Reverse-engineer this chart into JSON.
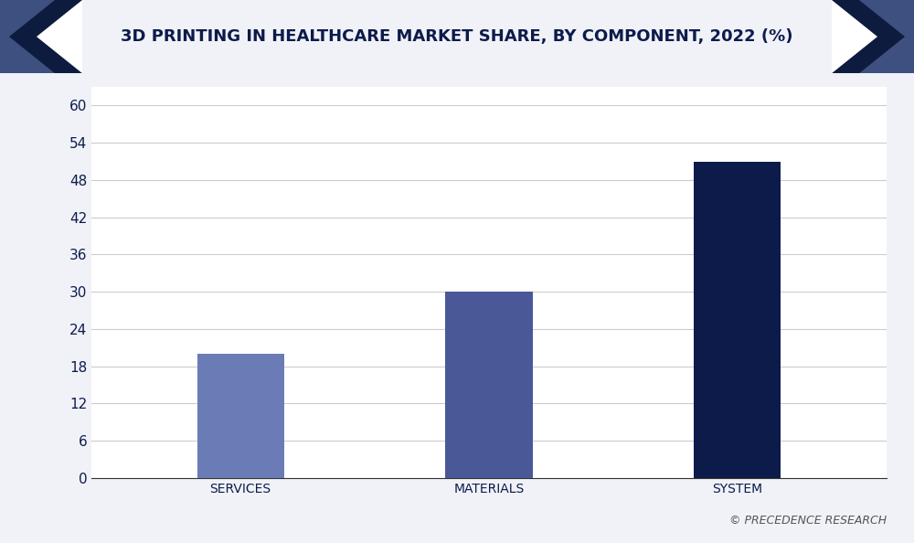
{
  "categories": [
    "SERVICES",
    "MATERIALS",
    "SYSTEM"
  ],
  "values": [
    20,
    30,
    51
  ],
  "bar_colors": [
    "#6B7BB5",
    "#4A5898",
    "#0D1B4B"
  ],
  "title": "3D PRINTING IN HEALTHCARE MARKET SHARE, BY COMPONENT, 2022 (%)",
  "yticks": [
    0,
    6,
    12,
    18,
    24,
    30,
    36,
    42,
    48,
    54,
    60
  ],
  "ylim": [
    0,
    63
  ],
  "background_color": "#f0f2f7",
  "plot_bg_color": "#ffffff",
  "title_color": "#0D1B4B",
  "tick_color": "#0D1B4B",
  "grid_color": "#cccccc",
  "watermark": "© PRECEDENCE RESEARCH",
  "title_fontsize": 13,
  "tick_fontsize": 11,
  "label_fontsize": 10,
  "bar_width": 0.35,
  "fig_width": 10.0,
  "fig_height": 5.94,
  "banner_bg": "#e8eaf0",
  "banner_dark": "#0d1b3e",
  "banner_mid": "#3d5080"
}
